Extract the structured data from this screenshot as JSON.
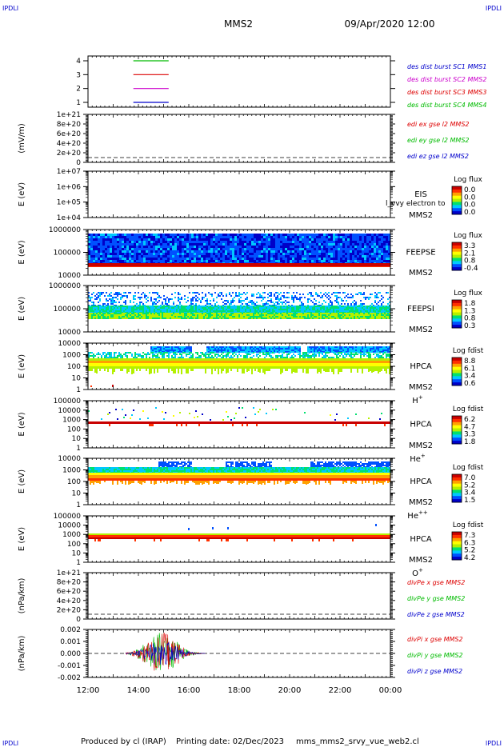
{
  "header": {
    "corner_label": "IPDLI",
    "spacecraft": "MMS2",
    "datetime": "09/Apr/2020 12:00"
  },
  "footer": {
    "produced_by": "Produced by cl (IRAP)",
    "printing_date": "Printing date: 02/Dec/2023",
    "filename": "mms_mms2_srvy_vue_web2.cl"
  },
  "colors": {
    "colorbar": [
      "#0000c8",
      "#0050ff",
      "#00c8ff",
      "#00e070",
      "#b4f000",
      "#ffff00",
      "#ffa000",
      "#ff3000",
      "#c80000"
    ]
  },
  "chart_data": [
    {
      "type": "line",
      "panel": "burst",
      "yticks": [
        "4",
        "3",
        "2",
        "1"
      ],
      "legend": [
        {
          "label": "des dist burst SC1 MMS1",
          "color": "#0000cc"
        },
        {
          "label": "des dist burst SC2 MMS2",
          "color": "#cc00cc"
        },
        {
          "label": "des dist burst SC3 MMS3",
          "color": "#dd0000"
        },
        {
          "label": "des dist burst SC4 MMS4",
          "color": "#00bb00"
        }
      ],
      "series": [
        {
          "color": "#00bb00",
          "y": 4,
          "x": [
            "13:48",
            "15:12"
          ]
        },
        {
          "color": "#dd0000",
          "y": 3,
          "x": [
            "13:48",
            "15:12"
          ]
        },
        {
          "color": "#cc00cc",
          "y": 2,
          "x": [
            "13:48",
            "15:12"
          ]
        },
        {
          "color": "#0000cc",
          "y": 1,
          "x": [
            "13:48",
            "15:12"
          ]
        }
      ]
    },
    {
      "type": "line",
      "panel": "edi",
      "ylabel": "(mV/m)",
      "yticks": [
        "1e+21",
        "8e+20",
        "6e+20",
        "4e+20",
        "2e+20",
        "0"
      ],
      "legend": [
        {
          "label": "edi ex gse l2 MMS2",
          "color": "#dd0000"
        },
        {
          "label": "edi ey gse l2 MMS2",
          "color": "#00bb00"
        },
        {
          "label": "edi ez gse l2 MMS2",
          "color": "#0000cc"
        }
      ]
    },
    {
      "type": "heatmap",
      "panel": "eis",
      "ylabel": "E (eV)",
      "yticks": [
        "1e+07",
        "1e+06",
        "1e+05",
        "1e+04"
      ],
      "labels": [
        "EIS",
        "MMS2"
      ],
      "overlay_text": "l_vvy electron to",
      "colorbar_title": "Log flux",
      "colorbar_ticks": [
        "0.0",
        "0.0",
        "0.0",
        "0.0"
      ]
    },
    {
      "type": "heatmap",
      "panel": "feepse",
      "ylabel": "E (eV)",
      "yticks": [
        "1000000",
        "100000",
        "10000"
      ],
      "labels": [
        "FEEPSE",
        "MMS2"
      ],
      "colorbar_title": "Log flux",
      "colorbar_ticks": [
        "3.3",
        "2.1",
        "0.8",
        "-0.4"
      ]
    },
    {
      "type": "heatmap",
      "panel": "feepsi",
      "ylabel": "E (eV)",
      "yticks": [
        "1000000",
        "100000",
        "10000"
      ],
      "labels": [
        "FEEPSI",
        "MMS2"
      ],
      "colorbar_title": "Log flux",
      "colorbar_ticks": [
        "1.8",
        "1.3",
        "0.8",
        "0.3"
      ]
    },
    {
      "type": "heatmap",
      "panel": "hpca_h",
      "ylabel": "E (eV)",
      "yticks": [
        "10000",
        "1000",
        "100",
        "10",
        "1"
      ],
      "labels": [
        "HPCA",
        "MMS2"
      ],
      "species": "H",
      "species_sup": "+",
      "colorbar_title": "Log fdist",
      "colorbar_ticks": [
        "8.8",
        "6.1",
        "3.4",
        "0.6"
      ]
    },
    {
      "type": "heatmap",
      "panel": "hpca_he",
      "ylabel": "E (eV)",
      "yticks": [
        "100000",
        "10000",
        "1000",
        "100",
        "10",
        "1"
      ],
      "labels": [
        "HPCA",
        "MMS2"
      ],
      "species": "He",
      "species_sup": "+",
      "colorbar_title": "Log fdist",
      "colorbar_ticks": [
        "6.2",
        "4.7",
        "3.3",
        "1.8"
      ]
    },
    {
      "type": "heatmap",
      "panel": "hpca_he2",
      "ylabel": "E (eV)",
      "yticks": [
        "10000",
        "1000",
        "100",
        "10",
        "1"
      ],
      "labels": [
        "HPCA",
        "MMS2"
      ],
      "species": "He",
      "species_sup": "++",
      "colorbar_title": "Log fdist",
      "colorbar_ticks": [
        "7.0",
        "5.2",
        "3.4",
        "1.5"
      ]
    },
    {
      "type": "heatmap",
      "panel": "hpca_o",
      "ylabel": "E (eV)",
      "yticks": [
        "100000",
        "10000",
        "1000",
        "100",
        "10",
        "1"
      ],
      "labels": [
        "HPCA",
        "MMS2"
      ],
      "species": "O",
      "species_sup": "+",
      "colorbar_title": "Log fdist",
      "colorbar_ticks": [
        "7.3",
        "6.3",
        "5.2",
        "4.2"
      ]
    },
    {
      "type": "line",
      "panel": "divpe",
      "ylabel": "(nPa/km)",
      "yticks": [
        "1e+21",
        "8e+20",
        "6e+20",
        "4e+20",
        "2e+20",
        "0"
      ],
      "legend": [
        {
          "label": "divPe x gse MMS2",
          "color": "#dd0000"
        },
        {
          "label": "divPe y gse MMS2",
          "color": "#00bb00"
        },
        {
          "label": "divPe z gse MMS2",
          "color": "#0000cc"
        }
      ]
    },
    {
      "type": "line",
      "panel": "divpi",
      "ylabel": "(nPa/km)",
      "yticks": [
        "0.002",
        "0.001",
        "0.000",
        "-0.001",
        "-0.002"
      ],
      "legend": [
        {
          "label": "divPi x gse MMS2",
          "color": "#dd0000"
        },
        {
          "label": "divPi y gse MMS2",
          "color": "#00bb00"
        },
        {
          "label": "divPi z gse MMS2",
          "color": "#0000cc"
        }
      ],
      "x_range": [
        "13:30",
        "16:40"
      ],
      "amplitude_max": 0.0018
    }
  ],
  "xaxis": {
    "ticks": [
      "12:00",
      "14:00",
      "16:00",
      "18:00",
      "20:00",
      "22:00",
      "00:00"
    ]
  }
}
